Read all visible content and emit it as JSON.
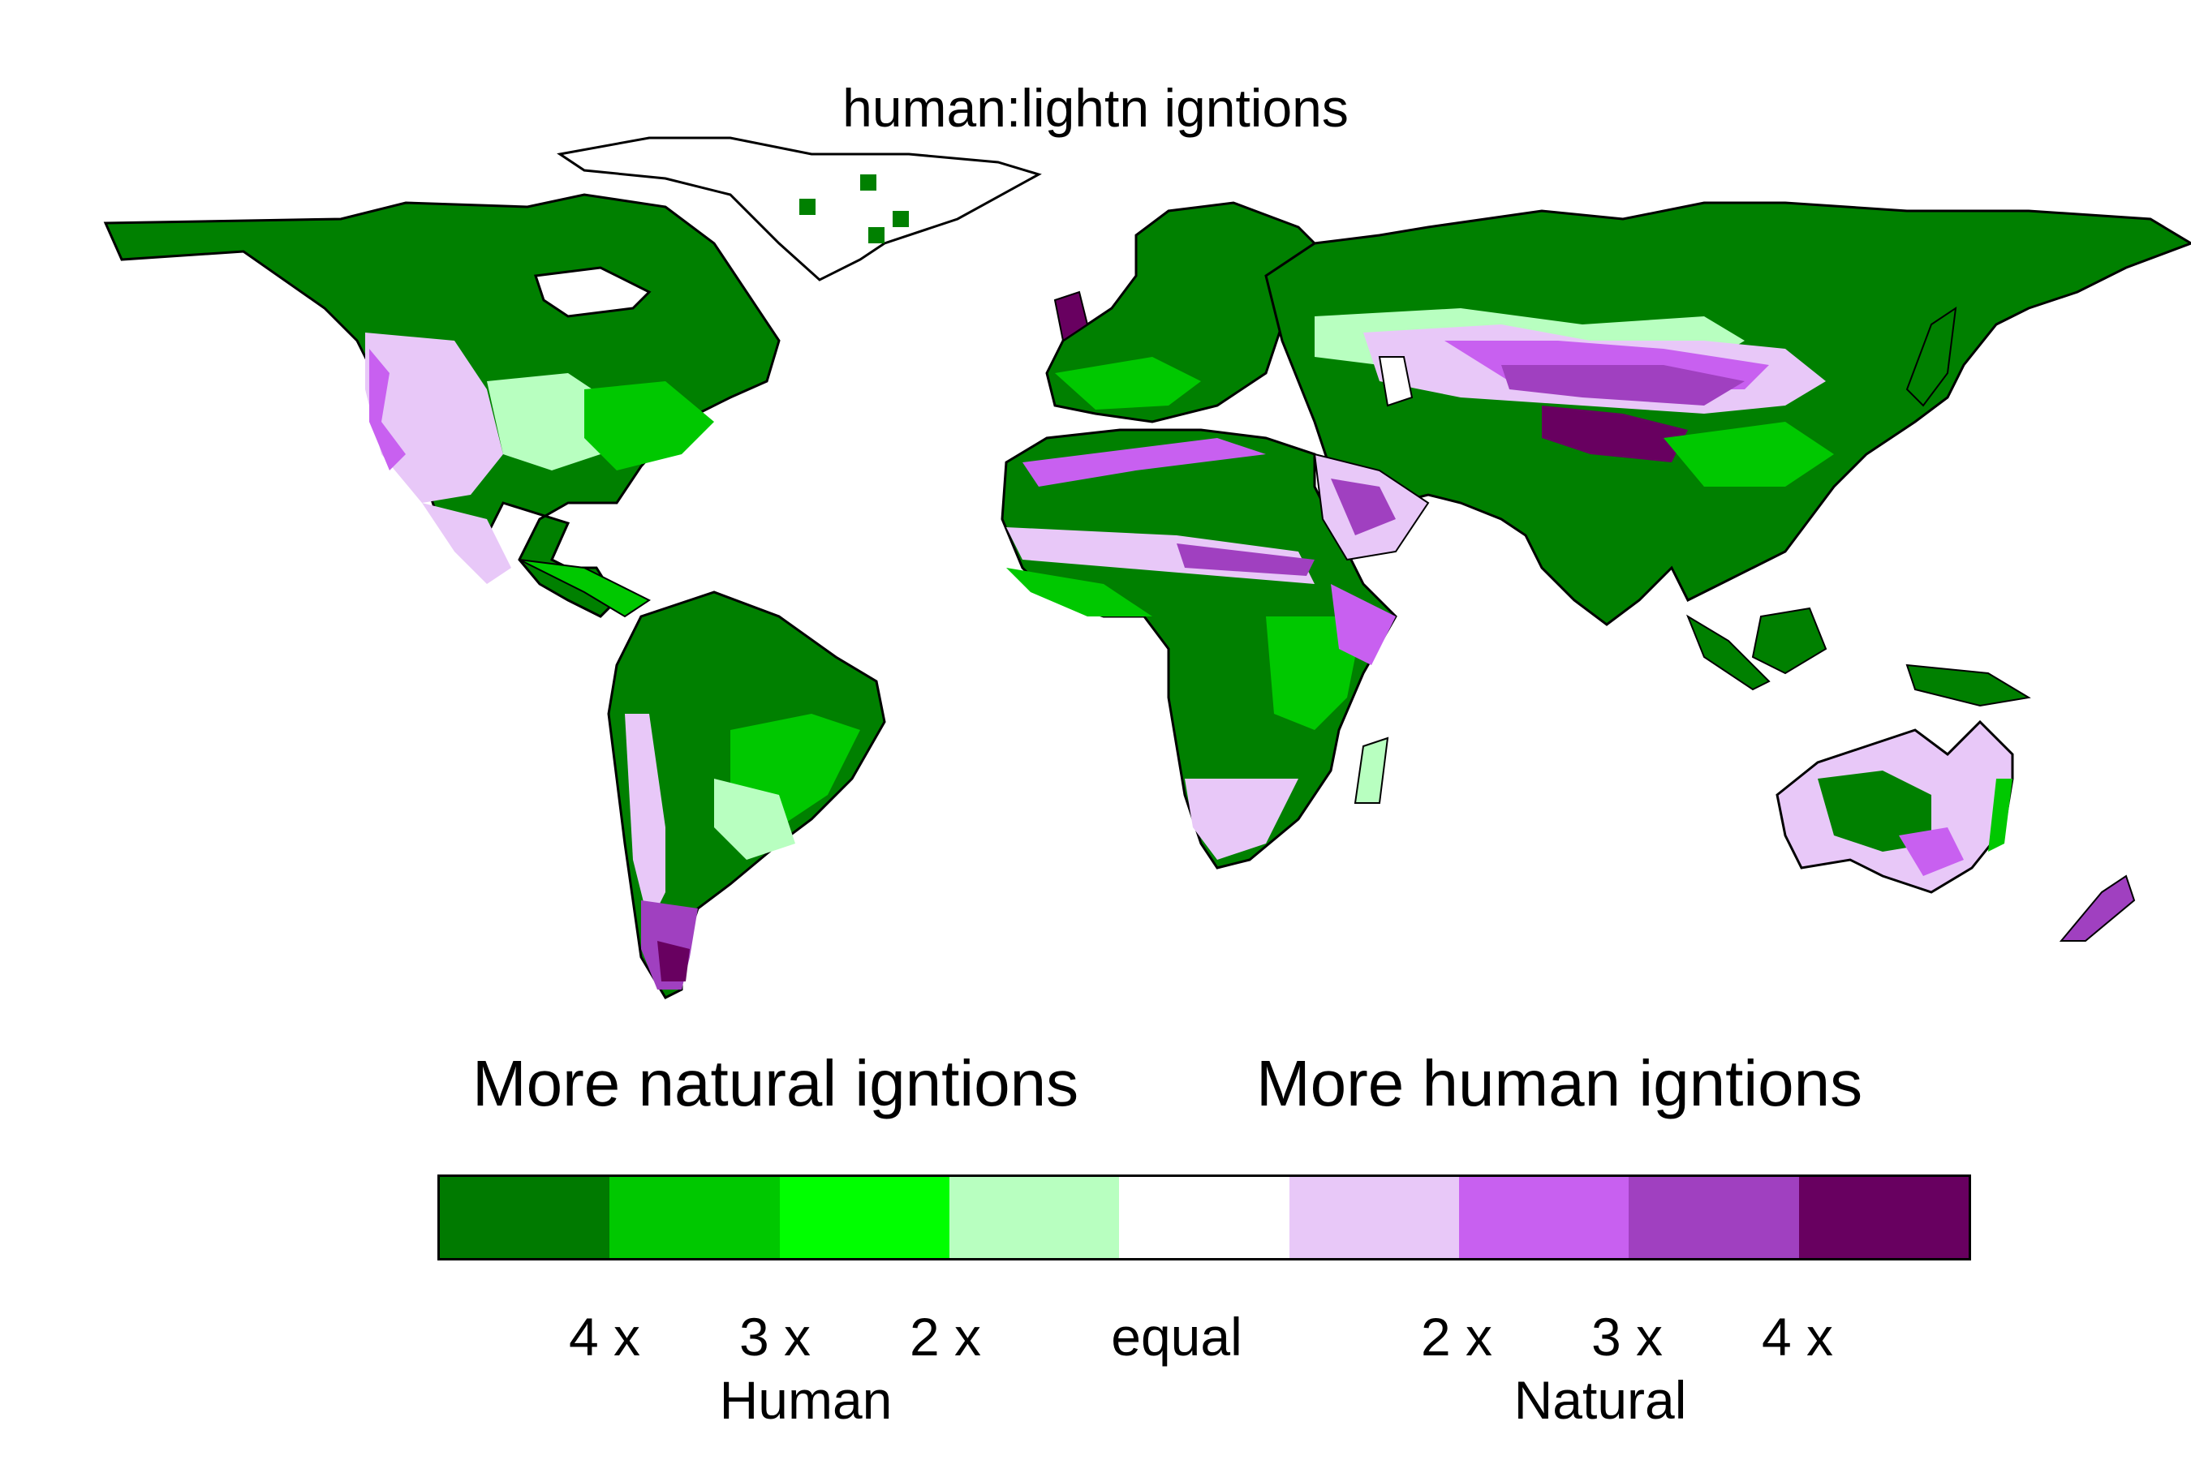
{
  "map": {
    "title": "human:lightn igntions",
    "heading_left": "More natural igntions",
    "heading_right": "More human igntions"
  },
  "legend": {
    "colors": [
      "#007a00",
      "#00c800",
      "#00ff00",
      "#b8ffc0",
      "#ffffff",
      "#e8c8f8",
      "#c860f0",
      "#a040c0",
      "#680060"
    ],
    "ticks": [
      "4 x",
      "3 x",
      "2 x",
      "equal",
      "2 x",
      "3 x",
      "4 x"
    ],
    "side_left": "Human",
    "side_right": "Natural"
  }
}
